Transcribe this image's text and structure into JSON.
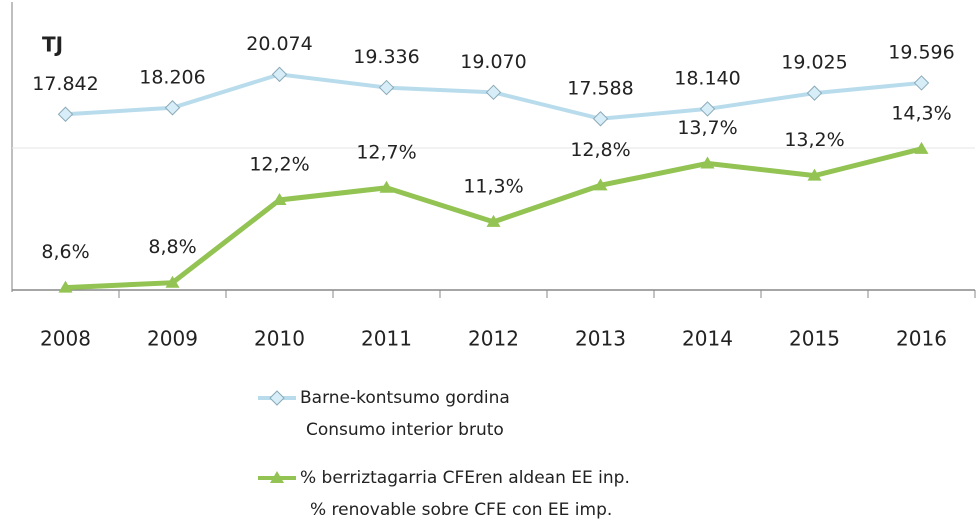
{
  "chart_data": {
    "type": "line",
    "axis_label": "TJ",
    "categories": [
      "2008",
      "2009",
      "2010",
      "2011",
      "2012",
      "2013",
      "2014",
      "2015",
      "2016"
    ],
    "series": [
      {
        "name": "Barne-kontsumo gordina",
        "subname": "Consumo interior bruto",
        "color": "#b9dcec",
        "values": [
          17842,
          18206,
          20074,
          19336,
          19070,
          17588,
          18140,
          19025,
          19596
        ],
        "value_labels": [
          "17.842",
          "18.206",
          "20.074",
          "19.336",
          "19.070",
          "17.588",
          "18.140",
          "19.025",
          "19.596"
        ]
      },
      {
        "name": "% berriztagarria CFEren aldean EE inp.",
        "subname": "% renovable sobre CFE con EE imp.",
        "color": "#92c353",
        "axis": "y2",
        "values": [
          8.6,
          8.8,
          12.2,
          12.7,
          11.3,
          12.8,
          13.7,
          13.2,
          14.3
        ],
        "value_labels": [
          "8,6%",
          "8,8%",
          "12,2%",
          "12,7%",
          "11,3%",
          "12,8%",
          "13,7%",
          "13,2%",
          "14,3%"
        ]
      }
    ],
    "ylim": [
      8000,
      23400
    ],
    "y2lim": [
      8.5,
      19.8
    ]
  }
}
